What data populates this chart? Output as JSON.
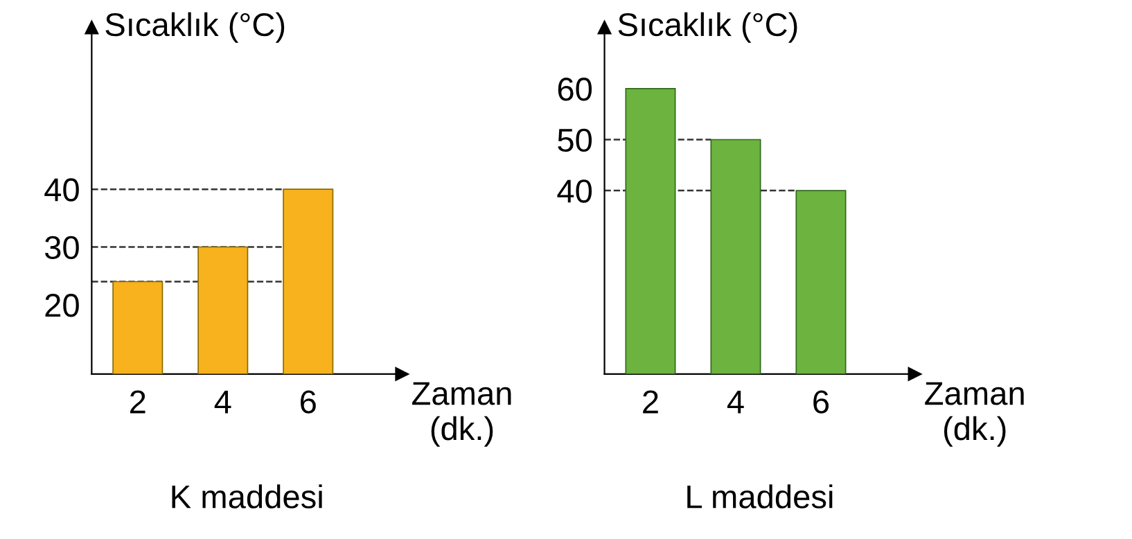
{
  "chart_data": [
    {
      "type": "bar",
      "title": "K maddesi",
      "xlabel": "Zaman\n(dk.)",
      "ylabel": "Sıcaklık (°C)",
      "categories": [
        "2",
        "4",
        "6"
      ],
      "values": [
        24,
        30,
        40
      ],
      "color": "#f7b21e",
      "ylim": [
        8,
        68
      ],
      "yticks": [
        20,
        30,
        40
      ],
      "ref_lines": [
        {
          "axis": "y",
          "value": 24,
          "line_style": "dashed"
        },
        {
          "axis": "y",
          "value": 30,
          "line_style": "dashed"
        },
        {
          "axis": "y",
          "value": 40,
          "line_style": "dashed"
        }
      ]
    },
    {
      "type": "bar",
      "title": "L maddesi",
      "xlabel": "Zaman\n(dk.)",
      "ylabel": "Sıcaklık (°C)",
      "categories": [
        "2",
        "4",
        "6"
      ],
      "values": [
        60,
        50,
        40
      ],
      "color": "#6cb33f",
      "ylim": [
        4,
        72
      ],
      "yticks": [
        40,
        50,
        60
      ],
      "ref_lines": [
        {
          "axis": "y",
          "value": 50,
          "line_style": "dashed"
        },
        {
          "axis": "y",
          "value": 40,
          "line_style": "dashed"
        }
      ]
    }
  ]
}
